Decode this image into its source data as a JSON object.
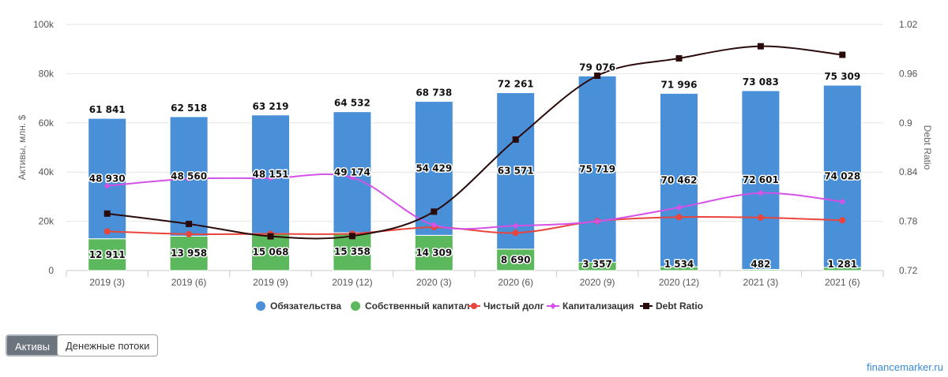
{
  "chart_data": {
    "type": "bar",
    "stacked": true,
    "categories": [
      "2019 (3)",
      "2019 (6)",
      "2019 (9)",
      "2019 (12)",
      "2020 (3)",
      "2020 (6)",
      "2020 (9)",
      "2020 (12)",
      "2021 (3)",
      "2021 (6)"
    ],
    "ylabel": "Активы, млн. $",
    "y2label": "Debt Ratio",
    "ylim": [
      0,
      100000
    ],
    "y2lim": [
      0.72,
      1.02
    ],
    "yticks": [
      "0",
      "20k",
      "40k",
      "60k",
      "80k",
      "100k"
    ],
    "y2ticks": [
      "0.72",
      "0.78",
      "0.84",
      "0.9",
      "0.96",
      "1.02"
    ],
    "totals": [
      61841,
      62518,
      63219,
      64532,
      68738,
      72261,
      79076,
      71996,
      73083,
      75309
    ],
    "total_labels": [
      "61 841",
      "62 518",
      "63 219",
      "64 532",
      "68 738",
      "72 261",
      "79 076",
      "71 996",
      "73 083",
      "75 309"
    ],
    "series": [
      {
        "name": "Обязательства",
        "type": "bar",
        "color": "#4a90d9",
        "values": [
          48930,
          48560,
          48151,
          49174,
          54429,
          63571,
          75719,
          70462,
          72601,
          74028
        ],
        "labels": [
          "48 930",
          "48 560",
          "48 151",
          "49 174",
          "54 429",
          "63 571",
          "75 719",
          "70 462",
          "72 601",
          "74 028"
        ]
      },
      {
        "name": "Собственный капитал",
        "type": "bar",
        "color": "#5cb85c",
        "values": [
          12911,
          13958,
          15068,
          15358,
          14309,
          8690,
          3357,
          1534,
          482,
          1281
        ],
        "labels": [
          "12 911",
          "13 958",
          "15 068",
          "15 358",
          "14 309",
          "8 690",
          "3 357",
          "1 534",
          "482",
          "1 281"
        ]
      },
      {
        "name": "Чистый долг",
        "type": "line",
        "color": "#e8453c",
        "marker": "circle",
        "values": [
          15900,
          14800,
          14900,
          15000,
          17600,
          15300,
          20100,
          21700,
          21500,
          20400
        ]
      },
      {
        "name": "Капитализация",
        "type": "line",
        "color": "#d452e8",
        "marker": "diamond",
        "values": [
          34400,
          37300,
          37500,
          37800,
          18500,
          18200,
          20000,
          25600,
          31500,
          28000
        ]
      },
      {
        "name": "Debt Ratio",
        "type": "line",
        "axis": "right",
        "color": "#2a0a0a",
        "marker": "square",
        "values": [
          0.7894,
          0.7768,
          0.7617,
          0.762,
          0.7918,
          0.8797,
          0.9575,
          0.9787,
          0.9934,
          0.983
        ]
      }
    ],
    "legend_position": "bottom-center",
    "grid": true
  },
  "tabs": [
    {
      "label": "Активы",
      "active": true
    },
    {
      "label": "Денежные потоки",
      "active": false
    }
  ],
  "brand": "financemarker.ru"
}
